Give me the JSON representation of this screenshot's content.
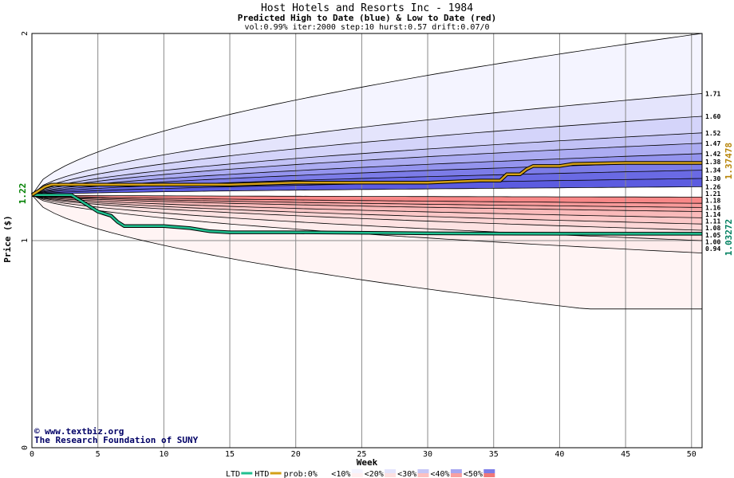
{
  "chart_data": {
    "type": "area",
    "title": "Host Hotels and Resorts Inc - 1984",
    "subtitle": "Predicted High to Date (blue) &  Low to Date (red)",
    "params": "vol:0.99% iter:2000 step:10 hurst:0.57 drift:0.07/0",
    "xlabel": "Week",
    "ylabel": "Price ($)",
    "xlim": [
      0,
      50.8
    ],
    "ylim": [
      0,
      2
    ],
    "x_ticks": [
      0,
      5,
      10,
      15,
      20,
      25,
      30,
      35,
      40,
      45,
      50
    ],
    "y_ticks": [
      0,
      1,
      2
    ],
    "start_value": 1.22,
    "start_label": "1.22",
    "high_bands_end": [
      2.0,
      1.71,
      1.6,
      1.52,
      1.47,
      1.42,
      1.38,
      1.34,
      1.3,
      1.26
    ],
    "low_bands_end": [
      1.21,
      1.18,
      1.16,
      1.14,
      1.11,
      1.08,
      1.05,
      1.0,
      0.94,
      0.67
    ],
    "right_labels": [
      "1.71",
      "1.60",
      "1.52",
      "1.47",
      "1.42",
      "1.38",
      "1.34",
      "1.30",
      "1.26",
      "1.21",
      "1.18",
      "1.16",
      "1.14",
      "1.11",
      "1.08",
      "1.05",
      "1.00",
      "0.94"
    ],
    "htd_series": {
      "name": "HTD",
      "end_label": "1.37478",
      "color": "#d4a017",
      "points": [
        [
          0,
          1.22
        ],
        [
          1,
          1.26
        ],
        [
          1.5,
          1.27
        ],
        [
          5,
          1.27
        ],
        [
          10,
          1.27
        ],
        [
          15,
          1.27
        ],
        [
          20,
          1.28
        ],
        [
          30,
          1.28
        ],
        [
          34,
          1.29
        ],
        [
          35.5,
          1.29
        ],
        [
          36,
          1.32
        ],
        [
          37,
          1.32
        ],
        [
          37.5,
          1.345
        ],
        [
          38,
          1.36
        ],
        [
          40,
          1.36
        ],
        [
          41,
          1.37
        ],
        [
          45,
          1.375
        ],
        [
          50.8,
          1.375
        ]
      ]
    },
    "ltd_series": {
      "name": "LTD",
      "end_label": "1.03272",
      "color": "#20c090",
      "points": [
        [
          0,
          1.22
        ],
        [
          3,
          1.22
        ],
        [
          3.5,
          1.2
        ],
        [
          4,
          1.18
        ],
        [
          4.5,
          1.16
        ],
        [
          5,
          1.14
        ],
        [
          6,
          1.12
        ],
        [
          6.5,
          1.09
        ],
        [
          7,
          1.07
        ],
        [
          10,
          1.07
        ],
        [
          12,
          1.06
        ],
        [
          13.5,
          1.045
        ],
        [
          15,
          1.04
        ],
        [
          20,
          1.04
        ],
        [
          30,
          1.035
        ],
        [
          40,
          1.033
        ],
        [
          50.8,
          1.033
        ]
      ]
    },
    "band_colors": {
      "high": [
        "#f4f4ff",
        "#e4e4fc",
        "#d4d4fa",
        "#c2c2f6",
        "#acacf2",
        "#9494ee",
        "#7c7ce8",
        "#6a6ae4",
        "#5c5ce0"
      ],
      "low": [
        "#f88888",
        "#f89a9a",
        "#f8aaaa",
        "#fababa",
        "#fcc8c8",
        "#fcd6d6",
        "#fde2e2",
        "#feecec",
        "#fff4f4"
      ]
    },
    "credit": [
      "www.textbiz.org",
      "The Research Foundation of SUNY"
    ],
    "legend": [
      {
        "label": "LTD",
        "kind": "line",
        "color": "#20c090"
      },
      {
        "label": "HTD",
        "kind": "line",
        "color": "#d4a017"
      },
      {
        "label": "prob:0%",
        "kind": "swatch",
        "colors": [
          "#ffffff",
          "#ffffff"
        ]
      },
      {
        "label": "<10%",
        "kind": "swatch",
        "colors": [
          "#f4f4ff",
          "#fff0f0"
        ]
      },
      {
        "label": "<20%",
        "kind": "swatch",
        "colors": [
          "#e4e4fc",
          "#fde0e0"
        ]
      },
      {
        "label": "<30%",
        "kind": "swatch",
        "colors": [
          "#c6c6f6",
          "#fcc0c0"
        ]
      },
      {
        "label": "<40%",
        "kind": "swatch",
        "colors": [
          "#a6a6f0",
          "#f8a0a0"
        ]
      },
      {
        "label": "<50%",
        "kind": "swatch",
        "colors": [
          "#7c7ce8",
          "#f07878"
        ]
      }
    ]
  }
}
